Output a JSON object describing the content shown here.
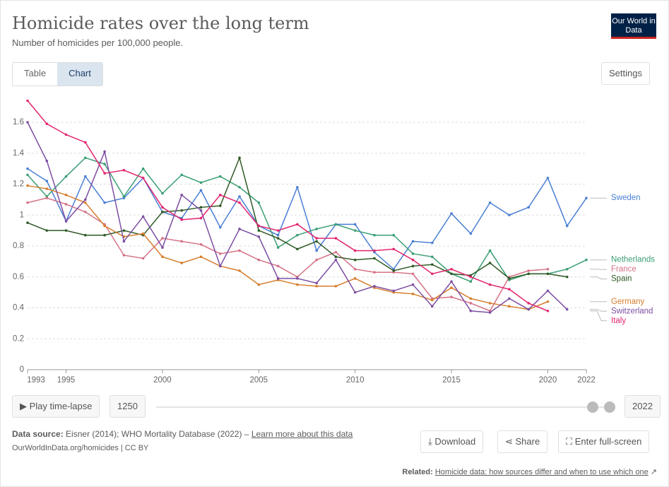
{
  "header": {
    "title": "Homicide rates over the long term",
    "subtitle": "Number of homicides per 100,000 people.",
    "logo": "Our World in Data"
  },
  "tabs": [
    "Table",
    "Chart"
  ],
  "settings": "Settings",
  "controls": {
    "play": "Play time-lapse",
    "start_year": "1250",
    "end_year": "2022"
  },
  "footer": {
    "source_label": "Data source:",
    "source_text": "Eisner (2014); WHO Mortality Database (2022) –",
    "source_link": "Learn more about this data",
    "url": "OurWorldInData.org/homicides | CC BY",
    "download": "Download",
    "share": "Share",
    "fullscreen": "Enter full-screen",
    "related_label": "Related:",
    "related_link": "Homicide data: how sources differ and when to use which one"
  },
  "chart_data": {
    "type": "line",
    "grid": true,
    "x": [
      1993,
      1994,
      1995,
      1996,
      1997,
      1998,
      1999,
      2000,
      2001,
      2002,
      2003,
      2004,
      2005,
      2006,
      2007,
      2008,
      2009,
      2010,
      2011,
      2012,
      2013,
      2014,
      2015,
      2016,
      2017,
      2018,
      2019,
      2020,
      2021,
      2022
    ],
    "xlim": [
      1993,
      2022
    ],
    "xticks": [
      1993,
      1995,
      2000,
      2005,
      2010,
      2015,
      2020,
      2022
    ],
    "ylim": [
      0,
      1.6
    ],
    "yticks": [
      0,
      0.2,
      0.4,
      0.6,
      0.8,
      1,
      1.2,
      1.4,
      1.6
    ],
    "series": [
      {
        "name": "Sweden",
        "color": "#4a7fd4",
        "values": [
          1.3,
          1.22,
          0.96,
          1.25,
          1.08,
          1.11,
          1.24,
          1.02,
          0.98,
          1.16,
          0.92,
          1.12,
          0.93,
          0.87,
          1.18,
          0.77,
          0.94,
          0.94,
          0.76,
          0.65,
          0.83,
          0.82,
          1.01,
          0.88,
          1.08,
          1.0,
          1.05,
          1.24,
          0.93,
          1.11
        ]
      },
      {
        "name": "Netherlands",
        "color": "#3a9f74",
        "values": [
          1.26,
          1.12,
          1.25,
          1.37,
          1.33,
          1.12,
          1.3,
          1.14,
          1.26,
          1.21,
          1.25,
          1.18,
          1.08,
          0.79,
          0.87,
          0.91,
          0.94,
          0.9,
          0.87,
          0.87,
          0.75,
          0.73,
          0.62,
          0.57,
          0.77,
          0.58,
          0.62,
          0.62,
          0.65,
          0.71
        ]
      },
      {
        "name": "France",
        "color": "#d57285",
        "values": [
          1.08,
          1.11,
          1.07,
          1.02,
          0.94,
          0.74,
          0.72,
          0.85,
          0.83,
          0.81,
          0.75,
          0.77,
          0.71,
          0.67,
          0.6,
          0.71,
          0.76,
          0.65,
          0.63,
          0.63,
          0.62,
          0.46,
          0.47,
          0.43,
          0.38,
          0.6,
          0.64,
          0.65,
          null,
          null
        ]
      },
      {
        "name": "Spain",
        "color": "#2f5a26",
        "values": [
          0.95,
          0.9,
          0.9,
          0.87,
          0.87,
          0.9,
          0.87,
          1.02,
          1.03,
          1.05,
          1.06,
          1.37,
          0.9,
          0.85,
          0.78,
          0.83,
          0.73,
          0.71,
          0.72,
          0.64,
          0.67,
          0.68,
          0.62,
          0.61,
          0.69,
          0.59,
          0.62,
          0.62,
          0.6,
          null
        ]
      },
      {
        "name": "Germany",
        "color": "#d67d2c",
        "values": [
          1.19,
          1.17,
          1.13,
          1.08,
          0.93,
          0.86,
          0.88,
          0.73,
          0.69,
          0.73,
          0.67,
          0.64,
          0.55,
          0.58,
          0.55,
          0.54,
          0.54,
          0.59,
          0.53,
          0.5,
          0.49,
          0.45,
          0.53,
          0.46,
          0.43,
          0.41,
          0.39,
          0.44,
          null,
          null
        ]
      },
      {
        "name": "Switzerland",
        "color": "#7d4ea3",
        "values": [
          1.6,
          1.35,
          0.96,
          1.1,
          1.41,
          0.83,
          0.99,
          0.79,
          1.13,
          1.03,
          0.67,
          0.91,
          0.86,
          0.59,
          0.59,
          0.56,
          0.71,
          0.5,
          0.54,
          0.51,
          0.55,
          0.41,
          0.57,
          0.38,
          0.37,
          0.46,
          0.39,
          0.51,
          0.39,
          null
        ]
      },
      {
        "name": "Italy",
        "color": "#e2266f",
        "values": [
          1.74,
          1.59,
          1.52,
          1.47,
          1.27,
          1.29,
          1.24,
          1.05,
          0.97,
          0.98,
          1.13,
          1.08,
          0.93,
          0.9,
          0.94,
          0.85,
          0.85,
          0.77,
          0.77,
          0.78,
          0.71,
          0.62,
          0.65,
          0.6,
          0.55,
          0.52,
          0.43,
          0.38,
          null,
          null
        ]
      }
    ]
  }
}
